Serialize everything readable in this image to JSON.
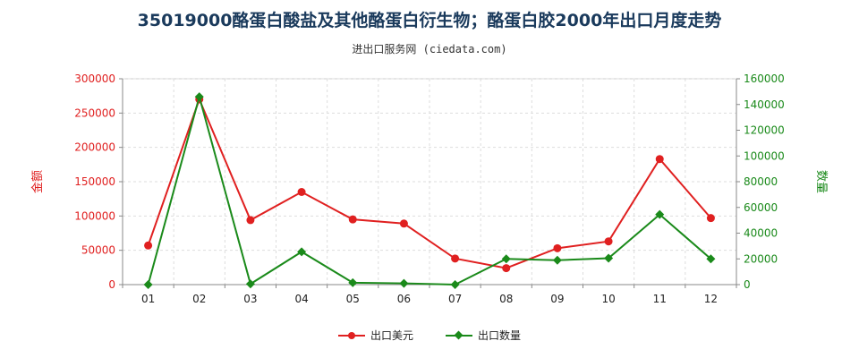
{
  "title": "35019000酪蛋白酸盐及其他酪蛋白衍生物；酪蛋白胶2000年出口月度走势",
  "subtitle": "进出口服务网 (ciedata.com)",
  "chart_data": {
    "type": "line",
    "categories": [
      "01",
      "02",
      "03",
      "04",
      "05",
      "06",
      "07",
      "08",
      "09",
      "10",
      "11",
      "12"
    ],
    "series": [
      {
        "name": "出口美元",
        "axis": "left",
        "color": "#e02020",
        "marker": "circle",
        "values": [
          57000,
          270000,
          94000,
          135000,
          95000,
          89000,
          38000,
          24000,
          53000,
          63000,
          183000,
          97000
        ]
      },
      {
        "name": "出口数量",
        "axis": "right",
        "color": "#1a8a1a",
        "marker": "diamond",
        "values": [
          0,
          146000,
          500,
          25500,
          1500,
          1000,
          0,
          20000,
          19000,
          20500,
          54500,
          20000
        ]
      }
    ],
    "y_left": {
      "label": "金额",
      "ylim": [
        0,
        300000
      ],
      "ticks": [
        "0",
        "50000",
        "100000",
        "150000",
        "200000",
        "250000",
        "300000"
      ],
      "color": "#e02020"
    },
    "y_right": {
      "label": "数量",
      "ylim": [
        0,
        160000
      ],
      "ticks": [
        "0",
        "20000",
        "40000",
        "60000",
        "80000",
        "100000",
        "120000",
        "140000",
        "160000"
      ],
      "color": "#1a8a1a"
    },
    "grid": true,
    "legend_position": "bottom-center"
  }
}
